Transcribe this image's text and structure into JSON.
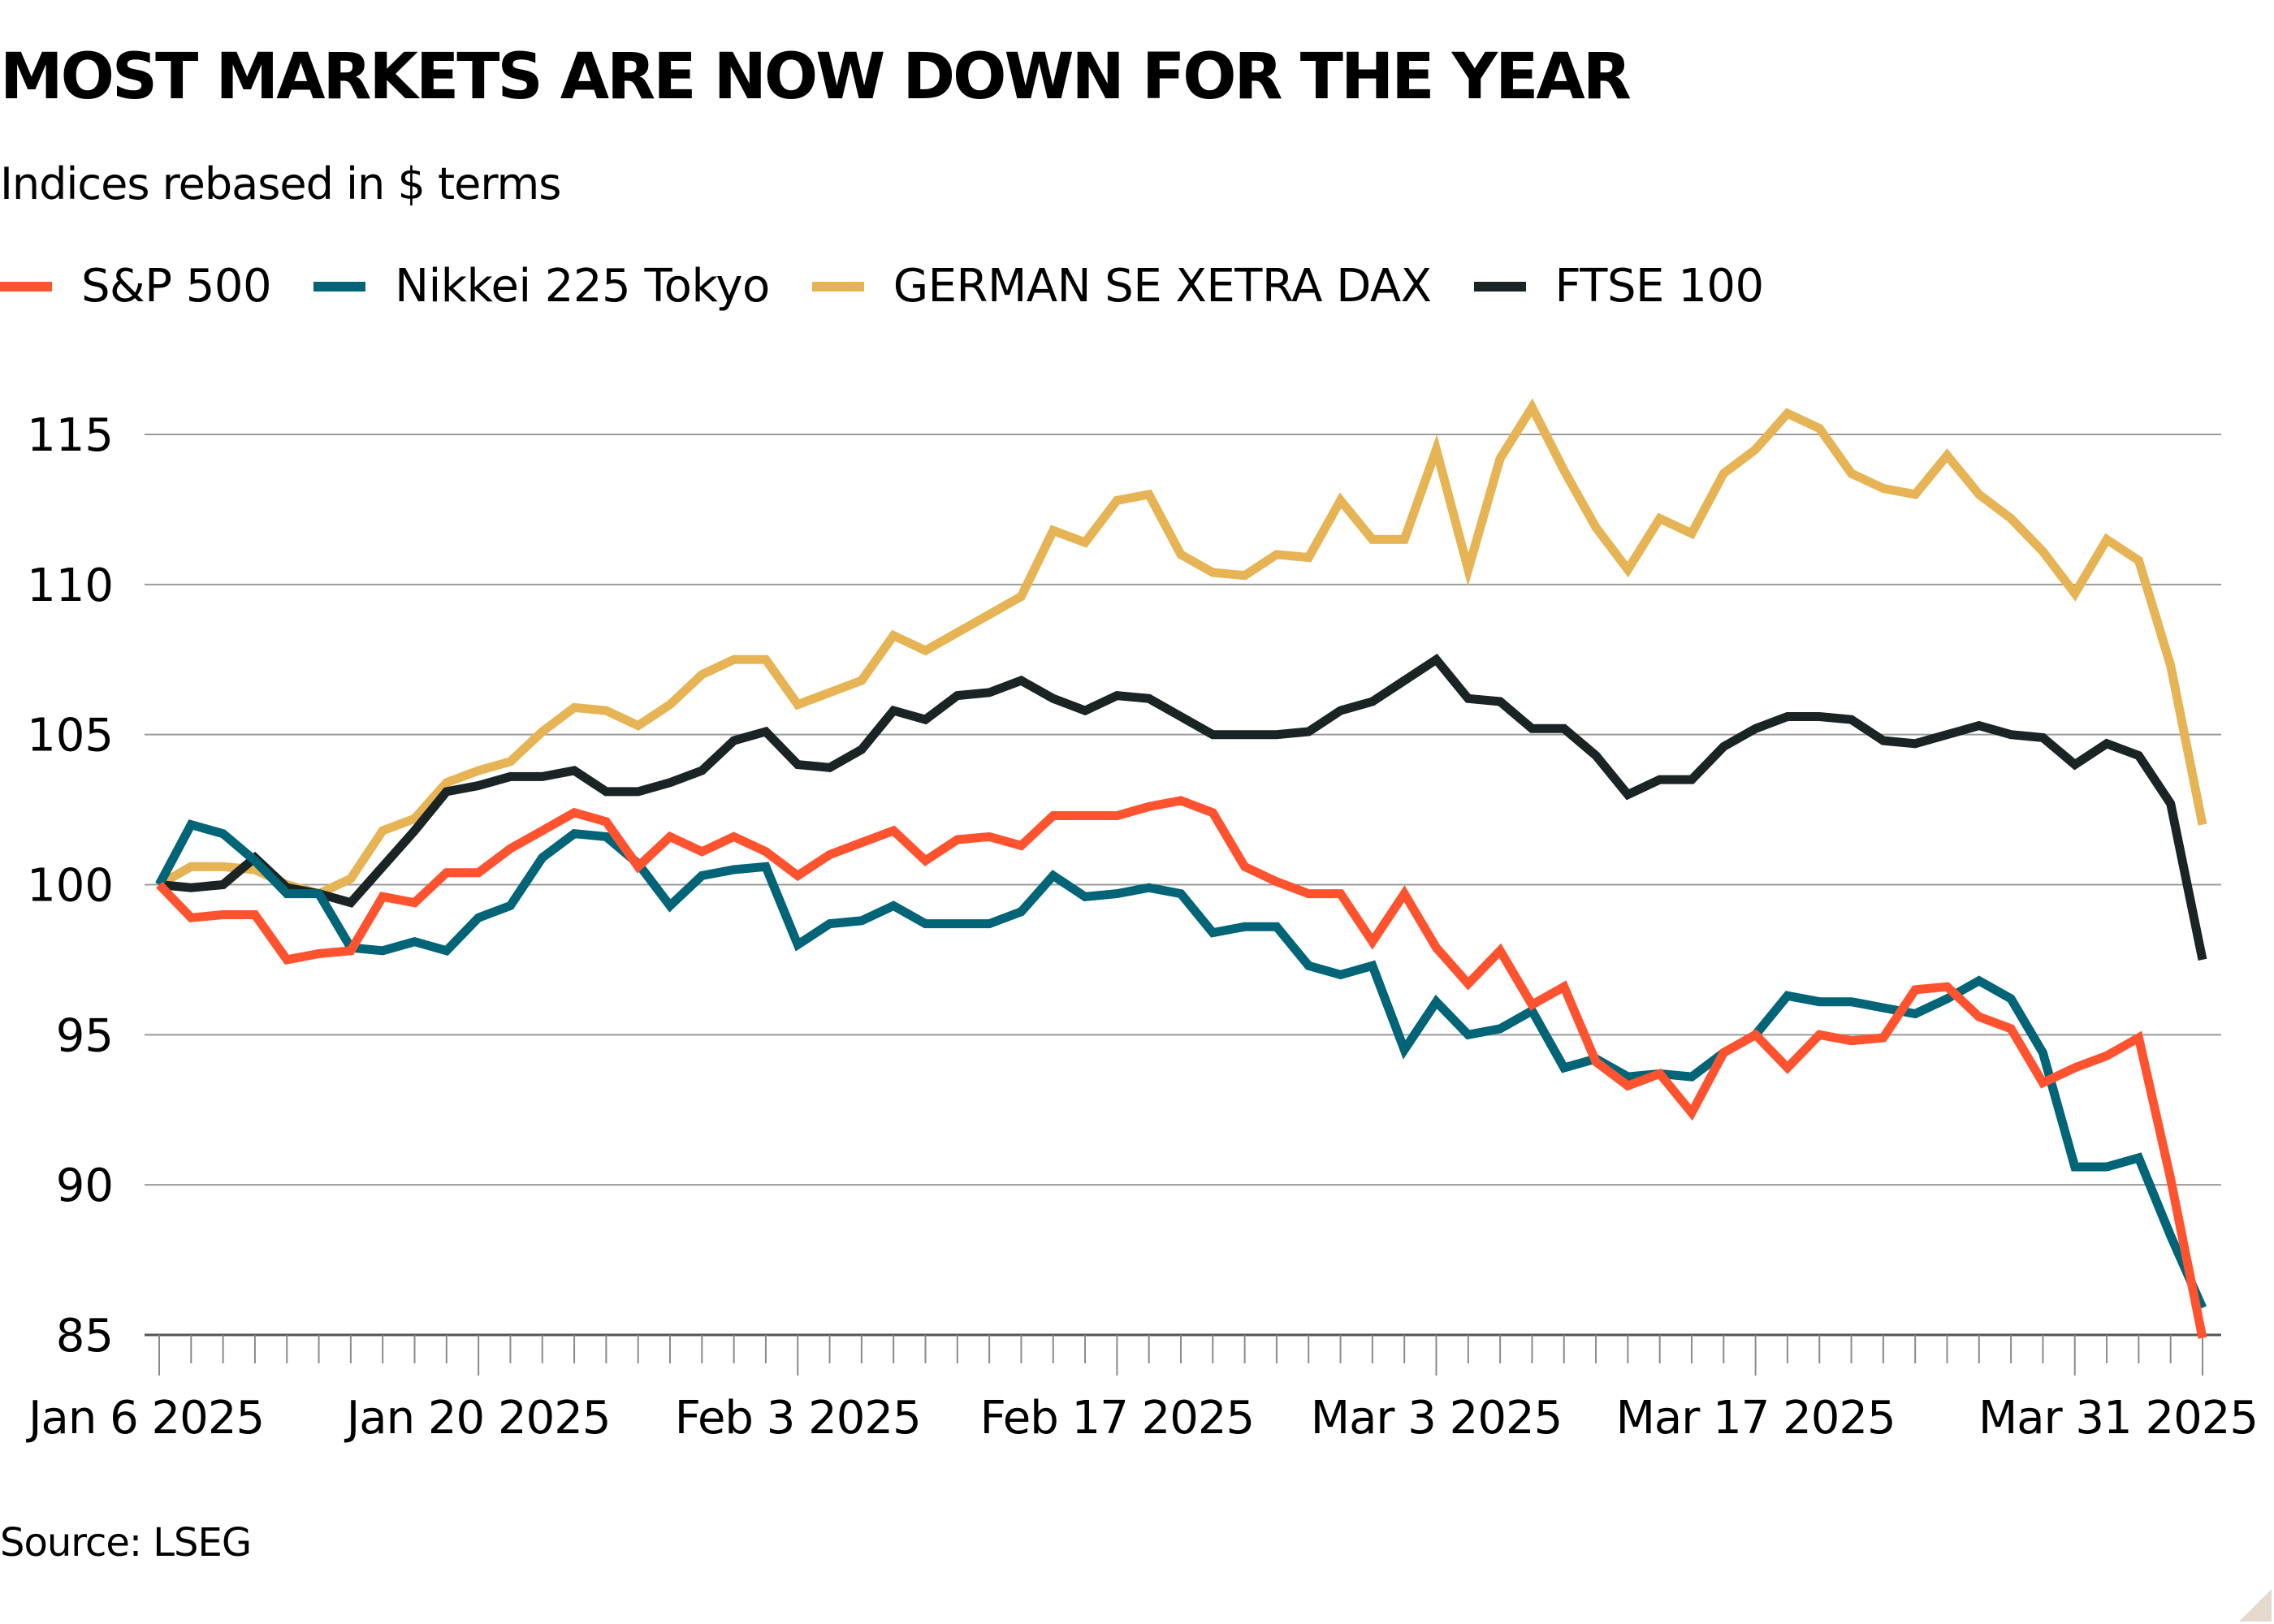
{
  "header": {
    "title": "MOST MARKETS ARE NOW DOWN FOR THE YEAR",
    "subtitle": "Indices rebased in $ terms"
  },
  "legend": [
    {
      "label": "S&P 500",
      "color": "#ff5330"
    },
    {
      "label": "Nikkei 225 Tokyo",
      "color": "#016477"
    },
    {
      "label": "GERMAN SE XETRA DAX",
      "color": "#e6b454"
    },
    {
      "label": "FTSE 100",
      "color": "#1a2424"
    }
  ],
  "footer": {
    "source": "Source: LSEG"
  },
  "chart_data": {
    "type": "line",
    "title": "MOST MARKETS ARE NOW DOWN FOR THE YEAR",
    "subtitle": "Indices rebased in $ terms",
    "xlabel": "",
    "ylabel": "",
    "ylim": [
      85,
      115
    ],
    "yticks": [
      85,
      90,
      95,
      100,
      105,
      110,
      115
    ],
    "grid": "horizontal",
    "legend_position": "top",
    "x_start": "Jan 6 2025",
    "x_end": "Apr 4 2025",
    "x_frequency": "trading days (weekdays)",
    "xtick_labels": [
      "Jan 6 2025",
      "Jan 20 2025",
      "Feb 3 2025",
      "Feb 17 2025",
      "Mar 3 2025",
      "Mar 17 2025",
      "Mar 31 2025"
    ],
    "xtick_index": [
      0,
      10,
      20,
      30,
      40,
      50,
      60
    ],
    "series": [
      {
        "name": "S&P 500",
        "color": "#ff5330",
        "values": [
          100,
          98.9,
          99.0,
          99.0,
          97.5,
          97.7,
          97.8,
          99.6,
          99.4,
          100.4,
          100.4,
          101.2,
          101.8,
          102.4,
          102.1,
          100.6,
          101.6,
          101.1,
          101.6,
          101.1,
          100.3,
          101.0,
          101.4,
          101.8,
          100.8,
          101.5,
          101.6,
          101.3,
          102.3,
          102.3,
          102.3,
          102.6,
          102.8,
          102.4,
          100.6,
          100.1,
          99.7,
          99.7,
          98.1,
          99.7,
          97.9,
          96.7,
          97.8,
          96.0,
          96.6,
          94.1,
          93.3,
          93.7,
          92.4,
          94.4,
          95.0,
          93.9,
          95.0,
          94.8,
          94.9,
          96.5,
          96.6,
          95.6,
          95.2,
          93.4,
          93.9,
          94.3,
          94.9,
          90.2,
          84.9
        ]
      },
      {
        "name": "Nikkei 225 Tokyo",
        "color": "#016477",
        "values": [
          100,
          102.0,
          101.7,
          100.8,
          99.7,
          99.7,
          97.9,
          97.8,
          98.1,
          97.8,
          98.9,
          99.3,
          100.9,
          101.7,
          101.6,
          100.7,
          99.3,
          100.3,
          100.5,
          100.6,
          98.0,
          98.7,
          98.8,
          99.3,
          98.7,
          98.7,
          98.7,
          99.1,
          100.3,
          99.6,
          99.7,
          99.9,
          99.7,
          98.4,
          98.6,
          98.6,
          97.3,
          97.0,
          97.3,
          94.5,
          96.1,
          95.0,
          95.2,
          95.8,
          93.9,
          94.2,
          93.6,
          93.7,
          93.6,
          94.4,
          95.0,
          96.3,
          96.1,
          96.1,
          95.9,
          95.7,
          96.2,
          96.8,
          96.2,
          94.4,
          90.6,
          90.6,
          90.9,
          88.3,
          85.9
        ]
      },
      {
        "name": "GERMAN SE XETRA DAX",
        "color": "#e6b454",
        "values": [
          100,
          100.6,
          100.6,
          100.5,
          100.0,
          99.7,
          100.2,
          101.8,
          102.2,
          103.4,
          103.8,
          104.1,
          105.1,
          105.9,
          105.8,
          105.3,
          106.0,
          107.0,
          107.5,
          107.5,
          106.0,
          106.4,
          106.8,
          108.3,
          107.8,
          108.4,
          109.0,
          109.6,
          111.8,
          111.4,
          112.8,
          113.0,
          111.0,
          110.4,
          110.3,
          111.0,
          110.9,
          112.8,
          111.5,
          111.5,
          114.5,
          110.5,
          114.2,
          115.9,
          113.8,
          111.9,
          110.5,
          112.2,
          111.7,
          113.7,
          114.5,
          115.7,
          115.2,
          113.7,
          113.2,
          113.0,
          114.3,
          113.0,
          112.2,
          111.1,
          109.7,
          111.5,
          110.8,
          107.3,
          102.0
        ]
      },
      {
        "name": "FTSE 100",
        "color": "#1a2424",
        "values": [
          100,
          99.9,
          100.0,
          100.9,
          99.9,
          99.7,
          99.4,
          100.6,
          101.8,
          103.1,
          103.3,
          103.6,
          103.6,
          103.8,
          103.1,
          103.1,
          103.4,
          103.8,
          104.8,
          105.1,
          104.0,
          103.9,
          104.5,
          105.8,
          105.5,
          106.3,
          106.4,
          106.8,
          106.2,
          105.8,
          106.3,
          106.2,
          105.6,
          105.0,
          105.0,
          105.0,
          105.1,
          105.8,
          106.1,
          106.8,
          107.5,
          106.2,
          106.1,
          105.2,
          105.2,
          104.3,
          103.0,
          103.5,
          103.5,
          104.6,
          105.2,
          105.6,
          105.6,
          105.5,
          104.8,
          104.7,
          105.0,
          105.3,
          105.0,
          104.9,
          104.0,
          104.7,
          104.3,
          102.7,
          97.5
        ]
      }
    ]
  }
}
